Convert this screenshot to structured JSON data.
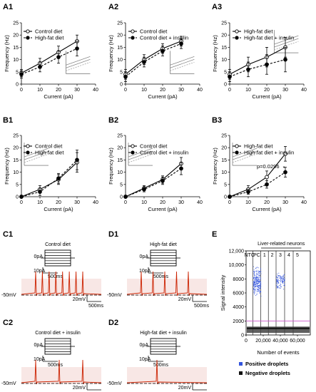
{
  "panels": {
    "A1": "A1",
    "A2": "A2",
    "A3": "A3",
    "B1": "B1",
    "B2": "B2",
    "B3": "B3",
    "C1": "C1",
    "C2": "C2",
    "D1": "D1",
    "D2": "D2",
    "E": "E"
  },
  "chart_data": [
    {
      "id": "A1",
      "type": "line",
      "xlabel": "Current (pA)",
      "ylabel": "Frequency (Hz)",
      "xlim": [
        0,
        40
      ],
      "ylim": [
        0,
        25
      ],
      "xticks": [
        0,
        10,
        20,
        30,
        40
      ],
      "yticks": [
        0,
        5,
        10,
        15,
        20,
        25
      ],
      "legend_position": "top-left",
      "series": [
        {
          "name": "Control diet",
          "marker": "open-circle",
          "line": "solid",
          "x": [
            0,
            10,
            20,
            30
          ],
          "y": [
            4.5,
            8.5,
            13,
            17.5
          ],
          "err": [
            1.5,
            2,
            2.5,
            2.5
          ]
        },
        {
          "name": "High-fat diet",
          "marker": "filled-circle",
          "line": "dashed",
          "x": [
            0,
            10,
            20,
            30
          ],
          "y": [
            4,
            7,
            11,
            14.5
          ],
          "err": [
            1.5,
            2,
            2.5,
            3
          ]
        }
      ]
    },
    {
      "id": "A2",
      "type": "line",
      "xlabel": "Current (pA)",
      "ylabel": "Frequency (Hz)",
      "xlim": [
        0,
        40
      ],
      "ylim": [
        0,
        25
      ],
      "xticks": [
        0,
        10,
        20,
        30,
        40
      ],
      "yticks": [
        0,
        5,
        10,
        15,
        20,
        25
      ],
      "legend_position": "top-left",
      "series": [
        {
          "name": "Control diet",
          "marker": "open-circle",
          "line": "solid",
          "x": [
            0,
            10,
            20,
            30
          ],
          "y": [
            4,
            10,
            14.5,
            17.5
          ],
          "err": [
            2,
            2,
            2,
            2
          ]
        },
        {
          "name": "Control diet + insulin",
          "marker": "filled-circle",
          "line": "dashed",
          "x": [
            0,
            10,
            20,
            30
          ],
          "y": [
            3,
            9,
            13.5,
            16.5
          ],
          "err": [
            2,
            2,
            2,
            2
          ]
        }
      ]
    },
    {
      "id": "A3",
      "type": "line",
      "xlabel": "Current (pA)",
      "ylabel": "Frequency (Hz)",
      "xlim": [
        0,
        40
      ],
      "ylim": [
        0,
        25
      ],
      "xticks": [
        0,
        10,
        20,
        30,
        40
      ],
      "yticks": [
        0,
        5,
        10,
        15,
        20,
        25
      ],
      "legend_position": "top-left",
      "series": [
        {
          "name": "High-fat diet",
          "marker": "open-circle",
          "line": "solid",
          "x": [
            0,
            10,
            20,
            30
          ],
          "y": [
            4,
            8,
            11,
            15
          ],
          "err": [
            2,
            3,
            4,
            4
          ]
        },
        {
          "name": "High-fat diet + insulin",
          "marker": "filled-circle",
          "line": "dashed",
          "x": [
            0,
            10,
            20,
            30
          ],
          "y": [
            3,
            6,
            8,
            10
          ],
          "err": [
            2,
            3,
            4,
            5
          ]
        }
      ]
    },
    {
      "id": "B1",
      "type": "line",
      "xlabel": "Current (pA)",
      "ylabel": "Frequency (Hz)",
      "xlim": [
        0,
        40
      ],
      "ylim": [
        0,
        25
      ],
      "xticks": [
        0,
        10,
        20,
        30,
        40
      ],
      "yticks": [
        0,
        5,
        10,
        15,
        20,
        25
      ],
      "legend_position": "top-left",
      "series": [
        {
          "name": "Control diet",
          "marker": "open-circle",
          "line": "solid",
          "x": [
            0,
            10,
            20,
            30
          ],
          "y": [
            0,
            3,
            7,
            14
          ],
          "err": [
            0.5,
            1.5,
            2,
            4
          ]
        },
        {
          "name": "High-fat diet",
          "marker": "filled-circle",
          "line": "dashed",
          "x": [
            0,
            10,
            20,
            30
          ],
          "y": [
            0,
            2,
            7.5,
            15
          ],
          "err": [
            0.5,
            1.5,
            2,
            4
          ]
        }
      ]
    },
    {
      "id": "B2",
      "type": "line",
      "xlabel": "Current (pA)",
      "ylabel": "Frequency (Hz)",
      "xlim": [
        0,
        40
      ],
      "ylim": [
        0,
        25
      ],
      "xticks": [
        0,
        10,
        20,
        30,
        40
      ],
      "yticks": [
        0,
        5,
        10,
        15,
        20,
        25
      ],
      "legend_position": "top-left",
      "series": [
        {
          "name": "Control diet",
          "marker": "open-circle",
          "line": "solid",
          "x": [
            0,
            10,
            20,
            30
          ],
          "y": [
            0,
            3.5,
            7,
            13.5
          ],
          "err": [
            0.5,
            1,
            1.5,
            2.5
          ]
        },
        {
          "name": "Control diet + insulin",
          "marker": "filled-circle",
          "line": "dashed",
          "x": [
            0,
            10,
            20,
            30
          ],
          "y": [
            0,
            3,
            6.5,
            11.5
          ],
          "err": [
            0.5,
            1,
            1.5,
            2.5
          ]
        }
      ]
    },
    {
      "id": "B3",
      "type": "line",
      "xlabel": "Current (pA)",
      "ylabel": "Frequency (Hz)",
      "xlim": [
        0,
        40
      ],
      "ylim": [
        0,
        25
      ],
      "xticks": [
        0,
        10,
        20,
        30,
        40
      ],
      "yticks": [
        0,
        5,
        10,
        15,
        20,
        25
      ],
      "legend_position": "top-left",
      "annotation": "p=0.0296",
      "series": [
        {
          "name": "High-fat diet",
          "marker": "open-circle",
          "line": "solid",
          "x": [
            0,
            10,
            20,
            30
          ],
          "y": [
            0,
            3,
            8,
            17.5
          ],
          "err": [
            0.5,
            1.5,
            2.5,
            3
          ]
        },
        {
          "name": "High-fat diet + insulin",
          "marker": "filled-circle",
          "line": "dashed",
          "x": [
            0,
            10,
            20,
            30
          ],
          "y": [
            0,
            2,
            5,
            10
          ],
          "err": [
            0.5,
            1,
            1.5,
            2
          ]
        }
      ]
    },
    {
      "id": "E",
      "type": "scatter",
      "xlabel": "Number of events",
      "ylabel": "Signal intensity",
      "xlim": [
        0,
        75000
      ],
      "ylim": [
        0,
        12000
      ],
      "xticks": [
        "0",
        "20,000",
        "40,000",
        "60,000"
      ],
      "yticks": [
        "0",
        "2000",
        "4000",
        "6000",
        "8000",
        "10,000",
        "12,000"
      ],
      "threshold": 2000,
      "wells": [
        "NTC",
        "PC",
        "1",
        "2",
        "3",
        "4",
        "5"
      ],
      "well_bounds": [
        0,
        8000,
        17000,
        26000,
        35000,
        45000,
        55000,
        65000
      ],
      "header": "Liver-related neurons",
      "positive_clusters": [
        {
          "well": "PC",
          "x": [
            8000,
            17000
          ],
          "y": [
            5500,
            10000
          ]
        },
        {
          "well": "3",
          "x": [
            35000,
            45000
          ],
          "y": [
            6500,
            9000
          ]
        }
      ],
      "negative_band": [
        300,
        1200
      ],
      "legend": [
        {
          "name": "Positive droplets",
          "color": "#3355dd"
        },
        {
          "name": "Negative droplets",
          "color": "#111111"
        }
      ]
    }
  ],
  "traces": {
    "C1": {
      "title": "Control diet",
      "spikes": 8
    },
    "D1": {
      "title": "High-fat diet",
      "spikes": 5
    },
    "C2": {
      "title": "Control diet + insulin",
      "spikes": 3
    },
    "D2": {
      "title": "High-fat diet + insulin",
      "spikes": 1
    }
  },
  "trace_labels": {
    "zero_pa": "0pA",
    "step_scale": "10pA",
    "time_scale": "500ms",
    "vm": "-50mV",
    "volt_scale": "20mV",
    "trace_time_scale": "500ms"
  },
  "colors": {
    "trace": "#cc2200",
    "trace_bg": "#f2d0cc",
    "threshold": "#cc55cc",
    "positive": "#3355dd",
    "negative": "#111111"
  }
}
